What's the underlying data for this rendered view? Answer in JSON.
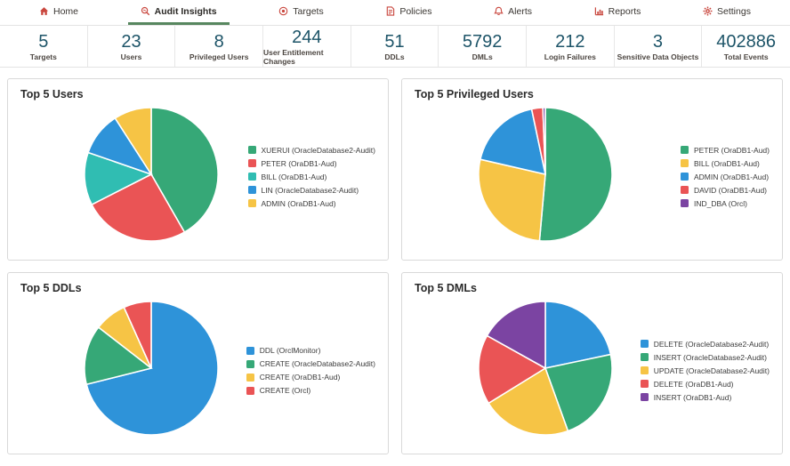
{
  "nav": {
    "icon_color": "#c9463d",
    "active_underline_color": "#57875f",
    "items": [
      {
        "label": "Home",
        "icon": "home-icon",
        "active": false
      },
      {
        "label": "Audit Insights",
        "icon": "magnifier-icon",
        "active": true
      },
      {
        "label": "Targets",
        "icon": "target-icon",
        "active": false
      },
      {
        "label": "Policies",
        "icon": "policy-icon",
        "active": false
      },
      {
        "label": "Alerts",
        "icon": "bell-icon",
        "active": false
      },
      {
        "label": "Reports",
        "icon": "bar-chart-icon",
        "active": false
      },
      {
        "label": "Settings",
        "icon": "gear-icon",
        "active": false
      }
    ]
  },
  "stats": {
    "value_color": "#1d5468",
    "items": [
      {
        "value": "5",
        "label": "Targets"
      },
      {
        "value": "23",
        "label": "Users"
      },
      {
        "value": "8",
        "label": "Privileged Users"
      },
      {
        "value": "244",
        "label": "User Entitlement Changes"
      },
      {
        "value": "51",
        "label": "DDLs"
      },
      {
        "value": "5792",
        "label": "DMLs"
      },
      {
        "value": "212",
        "label": "Login Failures"
      },
      {
        "value": "3",
        "label": "Sensitive Data Objects"
      },
      {
        "value": "402886",
        "label": "Total Events"
      }
    ]
  },
  "chart_data": [
    {
      "type": "pie",
      "title": "Top 5 Users",
      "legend_position": "right",
      "labels": [
        "XUERUI (OracleDatabase2-Audit)",
        "PETER (OraDB1-Aud)",
        "BILL (OraDB1-Aud)",
        "LIN (OracleDatabase2-Audit)",
        "ADMIN (OraDB1-Aud)"
      ],
      "values": [
        41.7,
        25.8,
        12.8,
        10.6,
        9.1
      ],
      "colors": [
        "#36a877",
        "#ea5455",
        "#30bdb2",
        "#2e93d9",
        "#f6c445"
      ]
    },
    {
      "type": "pie",
      "title": "Top 5 Privileged Users",
      "legend_position": "right",
      "labels": [
        "PETER (OraDB1-Aud)",
        "BILL (OraDB1-Aud)",
        "ADMIN (OraDB1-Aud)",
        "DAVID (OraDB1-Aud)",
        "IND_DBA (Orcl)"
      ],
      "values": [
        51.4,
        27.2,
        18.1,
        2.7,
        0.6
      ],
      "colors": [
        "#36a877",
        "#f6c445",
        "#2e93d9",
        "#ea5455",
        "#7b44a2"
      ]
    },
    {
      "type": "pie",
      "title": "Top 5 DDLs",
      "legend_position": "right",
      "labels": [
        "DDL (OrclMonitor)",
        "CREATE (OracleDatabase2-Audit)",
        "CREATE (OraDB1-Aud)",
        "CREATE (Orcl)"
      ],
      "values": [
        71.1,
        14.4,
        7.8,
        6.7
      ],
      "colors": [
        "#2e93d9",
        "#36a877",
        "#f6c445",
        "#ea5455"
      ]
    },
    {
      "type": "pie",
      "title": "Top 5 DMLs",
      "legend_position": "right",
      "labels": [
        "DELETE (OracleDatabase2-Audit)",
        "INSERT (OracleDatabase2-Audit)",
        "UPDATE (OracleDatabase2-Audit)",
        "DELETE (OraDB1-Aud)",
        "INSERT (OraDB1-Aud)"
      ],
      "values": [
        21.7,
        22.8,
        21.7,
        16.9,
        16.9
      ],
      "colors": [
        "#2e93d9",
        "#36a877",
        "#f6c445",
        "#ea5455",
        "#7b44a2"
      ]
    }
  ]
}
